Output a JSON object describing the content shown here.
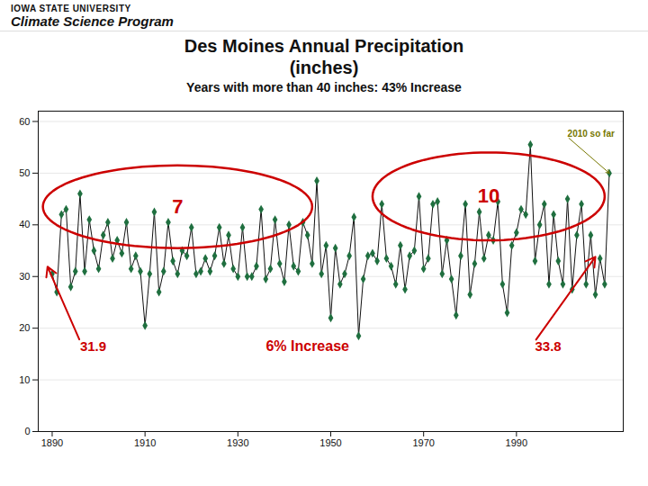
{
  "chart_data": {
    "type": "line",
    "header": [
      "IOWA STATE UNIVERSITY",
      "Climate Science Program"
    ],
    "title": "Des Moines Annual Precipitation\n(inches)",
    "subtitle": "Years with more than 40 inches:  43% Increase",
    "x": [
      1890,
      1891,
      1892,
      1893,
      1894,
      1895,
      1896,
      1897,
      1898,
      1899,
      1900,
      1901,
      1902,
      1903,
      1904,
      1905,
      1906,
      1907,
      1908,
      1909,
      1910,
      1911,
      1912,
      1913,
      1914,
      1915,
      1916,
      1917,
      1918,
      1919,
      1920,
      1921,
      1922,
      1923,
      1924,
      1925,
      1926,
      1927,
      1928,
      1929,
      1930,
      1931,
      1932,
      1933,
      1934,
      1935,
      1936,
      1937,
      1938,
      1939,
      1940,
      1941,
      1942,
      1943,
      1944,
      1945,
      1946,
      1947,
      1948,
      1949,
      1950,
      1951,
      1952,
      1953,
      1954,
      1955,
      1956,
      1957,
      1958,
      1959,
      1960,
      1961,
      1962,
      1963,
      1964,
      1965,
      1966,
      1967,
      1968,
      1969,
      1970,
      1971,
      1972,
      1973,
      1974,
      1975,
      1976,
      1977,
      1978,
      1979,
      1980,
      1981,
      1982,
      1983,
      1984,
      1985,
      1986,
      1987,
      1988,
      1989,
      1990,
      1991,
      1992,
      1993,
      1994,
      1995,
      1996,
      1997,
      1998,
      1999,
      2000,
      2001,
      2002,
      2003,
      2004,
      2005,
      2006,
      2007,
      2008,
      2009,
      2010
    ],
    "values": [
      30.5,
      27.0,
      42.0,
      43.0,
      28.0,
      31.0,
      46.0,
      31.0,
      41.0,
      35.0,
      31.5,
      38.0,
      40.5,
      33.5,
      37.0,
      34.5,
      40.5,
      31.5,
      34.0,
      31.0,
      20.5,
      30.5,
      42.5,
      27.0,
      31.0,
      40.5,
      33.0,
      30.5,
      35.0,
      34.0,
      39.5,
      30.5,
      31.0,
      33.5,
      31.0,
      34.0,
      39.5,
      32.5,
      38.0,
      31.5,
      30.0,
      39.5,
      30.0,
      30.0,
      32.0,
      43.0,
      29.5,
      31.5,
      41.0,
      32.5,
      29.0,
      40.0,
      32.0,
      31.0,
      40.5,
      38.0,
      32.5,
      48.5,
      30.5,
      36.0,
      22.0,
      35.5,
      28.5,
      30.5,
      34.0,
      41.5,
      18.5,
      29.5,
      34.0,
      34.5,
      33.0,
      44.0,
      33.5,
      32.0,
      28.5,
      36.0,
      27.5,
      34.0,
      35.0,
      45.5,
      31.5,
      33.5,
      44.0,
      44.5,
      30.5,
      37.0,
      29.5,
      22.5,
      34.0,
      44.0,
      26.5,
      32.5,
      42.5,
      33.5,
      38.0,
      37.0,
      44.5,
      28.5,
      23.0,
      36.0,
      38.5,
      43.0,
      42.0,
      55.5,
      33.0,
      40.0,
      44.0,
      28.5,
      42.0,
      33.0,
      28.5,
      45.0,
      27.5,
      38.0,
      44.0,
      28.5,
      38.0,
      26.5,
      33.5,
      28.5,
      50.0
    ],
    "marker": "diamond",
    "line_style": "solid",
    "xlim": [
      1887,
      2013
    ],
    "xticks": [
      1890,
      1910,
      1930,
      1950,
      1970,
      1990
    ],
    "ylim": [
      0,
      62
    ],
    "yticks": [
      0,
      10,
      20,
      30,
      40,
      50,
      60
    ],
    "grid": true,
    "annotations": [
      {
        "text": "7",
        "x": 1917,
        "y": 43.5,
        "color": "#cc0000",
        "ellipse": {
          "width": 58,
          "height": 16
        }
      },
      {
        "text": "10",
        "x": 1984,
        "y": 45.5,
        "color": "#cc0000",
        "ellipse": {
          "width": 50,
          "height": 17
        }
      },
      {
        "text": "31.9",
        "x": 1896,
        "y": 17.5,
        "color": "#cc0000",
        "arrow_to": [
          1889,
          31.9
        ]
      },
      {
        "text": "6% Increase",
        "x": 1945,
        "y": 16.5,
        "color": "#cc0000"
      },
      {
        "text": "33.8",
        "x": 1994,
        "y": 17.5,
        "color": "#cc0000",
        "arrow_to": [
          2007,
          33.8
        ]
      },
      {
        "text": "2010 so far",
        "x": 2001,
        "y": 57,
        "color": "#777700",
        "arrow_to": [
          2010,
          50.0
        ]
      }
    ]
  }
}
